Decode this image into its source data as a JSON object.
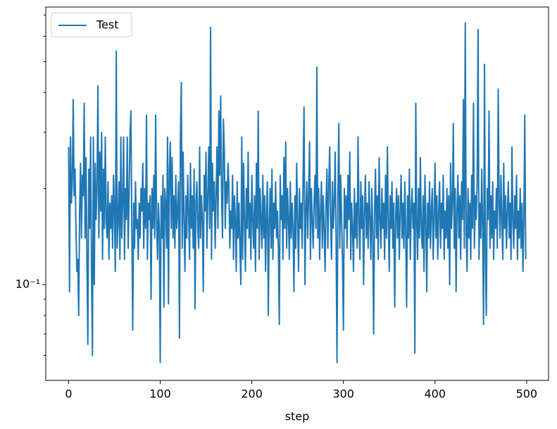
{
  "chart_data": {
    "type": "line",
    "xlabel": "step",
    "xlim": [
      -24.95,
      523.95
    ],
    "xticks": [
      0,
      100,
      200,
      300,
      400,
      500
    ],
    "ylim": [
      0.0501,
      0.741
    ],
    "yscale": "log",
    "yticks": [
      {
        "value": 0.1,
        "label": "10⁻¹"
      }
    ],
    "yminorticks": [
      0.06,
      0.07,
      0.08,
      0.09,
      0.2,
      0.3,
      0.4,
      0.5,
      0.6,
      0.7
    ],
    "legend": "upper left",
    "x": [
      0,
      1,
      2,
      3,
      4,
      5,
      6,
      7,
      8,
      9,
      10,
      11,
      12,
      13,
      14,
      15,
      16,
      17,
      18,
      19,
      20,
      21,
      22,
      23,
      24,
      25,
      26,
      27,
      28,
      29,
      30,
      31,
      32,
      33,
      34,
      35,
      36,
      37,
      38,
      39,
      40,
      41,
      42,
      43,
      44,
      45,
      46,
      47,
      48,
      49,
      50,
      51,
      52,
      53,
      54,
      55,
      56,
      57,
      58,
      59,
      60,
      61,
      62,
      63,
      64,
      65,
      66,
      67,
      68,
      69,
      70,
      71,
      72,
      73,
      74,
      75,
      76,
      77,
      78,
      79,
      80,
      81,
      82,
      83,
      84,
      85,
      86,
      87,
      88,
      89,
      90,
      91,
      92,
      93,
      94,
      95,
      96,
      97,
      98,
      99,
      100,
      101,
      102,
      103,
      104,
      105,
      106,
      107,
      108,
      109,
      110,
      111,
      112,
      113,
      114,
      115,
      116,
      117,
      118,
      119,
      120,
      121,
      122,
      123,
      124,
      125,
      126,
      127,
      128,
      129,
      130,
      131,
      132,
      133,
      134,
      135,
      136,
      137,
      138,
      139,
      140,
      141,
      142,
      143,
      144,
      145,
      146,
      147,
      148,
      149,
      150,
      151,
      152,
      153,
      154,
      155,
      156,
      157,
      158,
      159,
      160,
      161,
      162,
      163,
      164,
      165,
      166,
      167,
      168,
      169,
      170,
      171,
      172,
      173,
      174,
      175,
      176,
      177,
      178,
      179,
      180,
      181,
      182,
      183,
      184,
      185,
      186,
      187,
      188,
      189,
      190,
      191,
      192,
      193,
      194,
      195,
      196,
      197,
      198,
      199,
      200,
      201,
      202,
      203,
      204,
      205,
      206,
      207,
      208,
      209,
      210,
      211,
      212,
      213,
      214,
      215,
      216,
      217,
      218,
      219,
      220,
      221,
      222,
      223,
      224,
      225,
      226,
      227,
      228,
      229,
      230,
      231,
      232,
      233,
      234,
      235,
      236,
      237,
      238,
      239,
      240,
      241,
      242,
      243,
      244,
      245,
      246,
      247,
      248,
      249,
      250,
      251,
      252,
      253,
      254,
      255,
      256,
      257,
      258,
      259,
      260,
      261,
      262,
      263,
      264,
      265,
      266,
      267,
      268,
      269,
      270,
      271,
      272,
      273,
      274,
      275,
      276,
      277,
      278,
      279,
      280,
      281,
      282,
      283,
      284,
      285,
      286,
      287,
      288,
      289,
      290,
      291,
      292,
      293,
      294,
      295,
      296,
      297,
      298,
      299,
      300,
      301,
      302,
      303,
      304,
      305,
      306,
      307,
      308,
      309,
      310,
      311,
      312,
      313,
      314,
      315,
      316,
      317,
      318,
      319,
      320,
      321,
      322,
      323,
      324,
      325,
      326,
      327,
      328,
      329,
      330,
      331,
      332,
      333,
      334,
      335,
      336,
      337,
      338,
      339,
      340,
      341,
      342,
      343,
      344,
      345,
      346,
      347,
      348,
      349,
      350,
      351,
      352,
      353,
      354,
      355,
      356,
      357,
      358,
      359,
      360,
      361,
      362,
      363,
      364,
      365,
      366,
      367,
      368,
      369,
      370,
      371,
      372,
      373,
      374,
      375,
      376,
      377,
      378,
      379,
      380,
      381,
      382,
      383,
      384,
      385,
      386,
      387,
      388,
      389,
      390,
      391,
      392,
      393,
      394,
      395,
      396,
      397,
      398,
      399,
      400,
      401,
      402,
      403,
      404,
      405,
      406,
      407,
      408,
      409,
      410,
      411,
      412,
      413,
      414,
      415,
      416,
      417,
      418,
      419,
      420,
      421,
      422,
      423,
      424,
      425,
      426,
      427,
      428,
      429,
      430,
      431,
      432,
      433,
      434,
      435,
      436,
      437,
      438,
      439,
      440,
      441,
      442,
      443,
      444,
      445,
      446,
      447,
      448,
      449,
      450,
      451,
      452,
      453,
      454,
      455,
      456,
      457,
      458,
      459,
      460,
      461,
      462,
      463,
      464,
      465,
      466,
      467,
      468,
      469,
      470,
      471,
      472,
      473,
      474,
      475,
      476,
      477,
      478,
      479,
      480,
      481,
      482,
      483,
      484,
      485,
      486,
      487,
      488,
      489,
      490,
      491,
      492,
      493,
      494,
      495,
      496,
      497,
      498,
      499
    ],
    "series": [
      {
        "name": "Test",
        "color": "#1f77b4",
        "values": [
          0.27,
          0.095,
          0.29,
          0.18,
          0.21,
          0.38,
          0.19,
          0.23,
          0.15,
          0.11,
          0.12,
          0.08,
          0.17,
          0.24,
          0.14,
          0.22,
          0.19,
          0.37,
          0.14,
          0.25,
          0.12,
          0.065,
          0.23,
          0.15,
          0.29,
          0.11,
          0.06,
          0.29,
          0.1,
          0.24,
          0.16,
          0.2,
          0.42,
          0.14,
          0.26,
          0.17,
          0.3,
          0.12,
          0.23,
          0.15,
          0.29,
          0.16,
          0.14,
          0.21,
          0.12,
          0.18,
          0.15,
          0.19,
          0.13,
          0.22,
          0.17,
          0.11,
          0.54,
          0.13,
          0.16,
          0.21,
          0.12,
          0.29,
          0.14,
          0.18,
          0.29,
          0.12,
          0.2,
          0.16,
          0.29,
          0.13,
          0.19,
          0.29,
          0.35,
          0.15,
          0.072,
          0.18,
          0.13,
          0.21,
          0.15,
          0.16,
          0.12,
          0.18,
          0.14,
          0.2,
          0.17,
          0.24,
          0.13,
          0.2,
          0.15,
          0.34,
          0.12,
          0.18,
          0.16,
          0.19,
          0.09,
          0.2,
          0.15,
          0.22,
          0.14,
          0.34,
          0.16,
          0.12,
          0.18,
          0.15,
          0.057,
          0.19,
          0.14,
          0.22,
          0.085,
          0.2,
          0.18,
          0.13,
          0.29,
          0.087,
          0.23,
          0.28,
          0.15,
          0.25,
          0.14,
          0.19,
          0.13,
          0.22,
          0.15,
          0.17,
          0.21,
          0.068,
          0.28,
          0.43,
          0.13,
          0.26,
          0.16,
          0.11,
          0.19,
          0.14,
          0.22,
          0.17,
          0.12,
          0.24,
          0.15,
          0.19,
          0.13,
          0.23,
          0.084,
          0.18,
          0.21,
          0.15,
          0.13,
          0.27,
          0.14,
          0.19,
          0.16,
          0.095,
          0.22,
          0.17,
          0.26,
          0.13,
          0.19,
          0.27,
          0.15,
          0.64,
          0.12,
          0.24,
          0.17,
          0.21,
          0.13,
          0.19,
          0.27,
          0.15,
          0.35,
          0.22,
          0.39,
          0.19,
          0.14,
          0.33,
          0.26,
          0.15,
          0.21,
          0.18,
          0.24,
          0.2,
          0.13,
          0.17,
          0.15,
          0.22,
          0.12,
          0.19,
          0.16,
          0.11,
          0.21,
          0.14,
          0.18,
          0.13,
          0.1,
          0.29,
          0.12,
          0.24,
          0.16,
          0.11,
          0.2,
          0.15,
          0.26,
          0.14,
          0.18,
          0.12,
          0.22,
          0.16,
          0.13,
          0.19,
          0.11,
          0.24,
          0.15,
          0.35,
          0.12,
          0.2,
          0.16,
          0.13,
          0.22,
          0.14,
          0.19,
          0.11,
          0.17,
          0.21,
          0.08,
          0.16,
          0.2,
          0.13,
          0.23,
          0.12,
          0.18,
          0.15,
          0.21,
          0.14,
          0.17,
          0.13,
          0.075,
          0.22,
          0.16,
          0.19,
          0.12,
          0.25,
          0.15,
          0.28,
          0.13,
          0.2,
          0.16,
          0.12,
          0.21,
          0.14,
          0.18,
          0.15,
          0.095,
          0.19,
          0.13,
          0.24,
          0.16,
          0.11,
          0.2,
          0.15,
          0.18,
          0.13,
          0.22,
          0.36,
          0.1,
          0.17,
          0.21,
          0.14,
          0.19,
          0.28,
          0.12,
          0.2,
          0.16,
          0.13,
          0.18,
          0.22,
          0.15,
          0.48,
          0.14,
          0.2,
          0.12,
          0.17,
          0.21,
          0.13,
          0.19,
          0.15,
          0.11,
          0.18,
          0.23,
          0.13,
          0.2,
          0.27,
          0.16,
          0.12,
          0.21,
          0.15,
          0.18,
          0.26,
          0.14,
          0.057,
          0.19,
          0.32,
          0.13,
          0.22,
          0.16,
          0.12,
          0.072,
          0.2,
          0.15,
          0.19,
          0.13,
          0.22,
          0.16,
          0.26,
          0.12,
          0.18,
          0.15,
          0.11,
          0.2,
          0.14,
          0.18,
          0.13,
          0.29,
          0.16,
          0.12,
          0.21,
          0.15,
          0.19,
          0.1,
          0.17,
          0.22,
          0.14,
          0.18,
          0.13,
          0.21,
          0.16,
          0.12,
          0.2,
          0.15,
          0.07,
          0.17,
          0.23,
          0.14,
          0.19,
          0.12,
          0.25,
          0.16,
          0.13,
          0.2,
          0.15,
          0.18,
          0.12,
          0.22,
          0.14,
          0.27,
          0.16,
          0.11,
          0.19,
          0.15,
          0.21,
          0.13,
          0.18,
          0.085,
          0.16,
          0.2,
          0.14,
          0.19,
          0.12,
          0.17,
          0.22,
          0.14,
          0.18,
          0.13,
          0.21,
          0.15,
          0.085,
          0.19,
          0.14,
          0.23,
          0.12,
          0.17,
          0.2,
          0.15,
          0.18,
          0.061,
          0.37,
          0.16,
          0.12,
          0.2,
          0.14,
          0.25,
          0.15,
          0.13,
          0.19,
          0.11,
          0.22,
          0.16,
          0.095,
          0.18,
          0.14,
          0.21,
          0.13,
          0.17,
          0.2,
          0.12,
          0.16,
          0.24,
          0.14,
          0.19,
          0.12,
          0.17,
          0.21,
          0.13,
          0.18,
          0.15,
          0.22,
          0.12,
          0.17,
          0.14,
          0.2,
          0.13,
          0.19,
          0.1,
          0.24,
          0.15,
          0.18,
          0.32,
          0.13,
          0.2,
          0.095,
          0.17,
          0.22,
          0.14,
          0.19,
          0.12,
          0.21,
          0.16,
          0.38,
          0.13,
          0.66,
          0.15,
          0.11,
          0.2,
          0.14,
          0.18,
          0.12,
          0.22,
          0.15,
          0.37,
          0.13,
          0.19,
          0.16,
          0.21,
          0.63,
          0.12,
          0.18,
          0.14,
          0.23,
          0.15,
          0.075,
          0.49,
          0.12,
          0.08,
          0.2,
          0.16,
          0.35,
          0.13,
          0.19,
          0.14,
          0.21,
          0.12,
          0.17,
          0.15,
          0.2,
          0.13,
          0.41,
          0.18,
          0.14,
          0.22,
          0.16,
          0.12,
          0.24,
          0.15,
          0.19,
          0.13,
          0.17,
          0.21,
          0.14,
          0.18,
          0.12,
          0.27,
          0.16,
          0.13,
          0.19,
          0.15,
          0.22,
          0.12,
          0.17,
          0.14,
          0.2,
          0.13,
          0.18,
          0.11,
          0.16,
          0.34,
          0.12
        ]
      }
    ]
  }
}
